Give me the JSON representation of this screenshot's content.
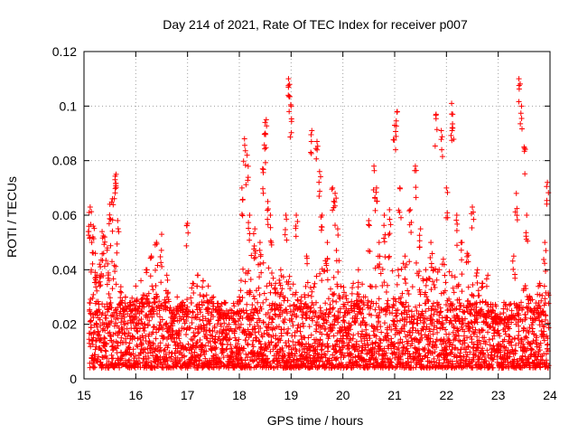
{
  "chart_data": {
    "type": "scatter",
    "title": "Day 214 of 2021, Rate Of TEC Index for receiver p007",
    "xlabel": "GPS time / hours",
    "ylabel": "ROTI / TECUs",
    "xlim": [
      15,
      24
    ],
    "ylim": [
      0,
      0.12
    ],
    "x_ticks": [
      15,
      16,
      17,
      18,
      19,
      20,
      21,
      22,
      23,
      24
    ],
    "x_tick_labels": [
      "15",
      "16",
      "17",
      "18",
      "19",
      "20",
      "21",
      "22",
      "23",
      "24"
    ],
    "y_ticks": [
      0,
      0.02,
      0.04,
      0.06,
      0.08,
      0.1,
      0.12
    ],
    "y_tick_labels": [
      "0",
      "0.02",
      "0.04",
      "0.06",
      "0.08",
      "0.1",
      "0.12"
    ],
    "grid": true,
    "marker": "plus",
    "color": "#ff0000",
    "series": [
      {
        "points": [
          [
            15.1,
            0.061
          ],
          [
            15.12,
            0.063
          ],
          [
            15.15,
            0.05
          ],
          [
            15.18,
            0.056
          ],
          [
            15.22,
            0.046
          ],
          [
            15.25,
            0.038
          ],
          [
            15.3,
            0.042
          ],
          [
            15.35,
            0.054
          ],
          [
            15.4,
            0.052
          ],
          [
            15.45,
            0.048
          ],
          [
            15.5,
            0.064
          ],
          [
            15.55,
            0.066
          ],
          [
            15.6,
            0.073
          ],
          [
            15.62,
            0.075
          ],
          [
            15.65,
            0.058
          ],
          [
            15.7,
            0.032
          ],
          [
            15.8,
            0.03
          ],
          [
            15.9,
            0.028
          ],
          [
            16.0,
            0.034
          ],
          [
            16.1,
            0.036
          ],
          [
            16.2,
            0.04
          ],
          [
            16.3,
            0.045
          ],
          [
            16.4,
            0.05
          ],
          [
            16.5,
            0.053
          ],
          [
            16.6,
            0.038
          ],
          [
            16.7,
            0.024
          ],
          [
            16.8,
            0.03
          ],
          [
            16.9,
            0.028
          ],
          [
            17.0,
            0.057
          ],
          [
            17.1,
            0.035
          ],
          [
            17.2,
            0.038
          ],
          [
            17.3,
            0.036
          ],
          [
            17.4,
            0.034
          ],
          [
            17.5,
            0.03
          ],
          [
            17.6,
            0.025
          ],
          [
            17.7,
            0.022
          ],
          [
            17.8,
            0.02
          ],
          [
            17.9,
            0.024
          ],
          [
            18.0,
            0.03
          ],
          [
            18.05,
            0.07
          ],
          [
            18.1,
            0.088
          ],
          [
            18.15,
            0.082
          ],
          [
            18.2,
            0.06
          ],
          [
            18.3,
            0.055
          ],
          [
            18.4,
            0.05
          ],
          [
            18.45,
            0.077
          ],
          [
            18.5,
            0.09
          ],
          [
            18.52,
            0.095
          ],
          [
            18.55,
            0.065
          ],
          [
            18.6,
            0.06
          ],
          [
            18.7,
            0.035
          ],
          [
            18.8,
            0.04
          ],
          [
            18.9,
            0.06
          ],
          [
            18.95,
            0.11
          ],
          [
            18.97,
            0.108
          ],
          [
            19.0,
            0.1
          ],
          [
            19.1,
            0.06
          ],
          [
            19.2,
            0.03
          ],
          [
            19.3,
            0.045
          ],
          [
            19.4,
            0.091
          ],
          [
            19.5,
            0.087
          ],
          [
            19.55,
            0.076
          ],
          [
            19.6,
            0.06
          ],
          [
            19.7,
            0.05
          ],
          [
            19.8,
            0.07
          ],
          [
            19.85,
            0.068
          ],
          [
            19.9,
            0.055
          ],
          [
            20.0,
            0.03
          ],
          [
            20.1,
            0.025
          ],
          [
            20.2,
            0.035
          ],
          [
            20.3,
            0.04
          ],
          [
            20.4,
            0.03
          ],
          [
            20.5,
            0.058
          ],
          [
            20.6,
            0.078
          ],
          [
            20.65,
            0.07
          ],
          [
            20.7,
            0.05
          ],
          [
            20.8,
            0.06
          ],
          [
            20.9,
            0.062
          ],
          [
            21.0,
            0.093
          ],
          [
            21.05,
            0.098
          ],
          [
            21.1,
            0.07
          ],
          [
            21.2,
            0.045
          ],
          [
            21.3,
            0.062
          ],
          [
            21.4,
            0.078
          ],
          [
            21.5,
            0.055
          ],
          [
            21.6,
            0.04
          ],
          [
            21.7,
            0.05
          ],
          [
            21.8,
            0.097
          ],
          [
            21.9,
            0.091
          ],
          [
            22.0,
            0.07
          ],
          [
            22.1,
            0.101
          ],
          [
            22.12,
            0.097
          ],
          [
            22.2,
            0.06
          ],
          [
            22.3,
            0.05
          ],
          [
            22.4,
            0.046
          ],
          [
            22.5,
            0.063
          ],
          [
            22.6,
            0.04
          ],
          [
            22.7,
            0.035
          ],
          [
            22.8,
            0.038
          ],
          [
            22.9,
            0.025
          ],
          [
            23.0,
            0.02
          ],
          [
            23.1,
            0.018
          ],
          [
            23.2,
            0.02
          ],
          [
            23.3,
            0.045
          ],
          [
            23.35,
            0.068
          ],
          [
            23.4,
            0.11
          ],
          [
            23.45,
            0.1
          ],
          [
            23.5,
            0.085
          ],
          [
            23.55,
            0.06
          ],
          [
            23.6,
            0.03
          ],
          [
            23.7,
            0.025
          ],
          [
            23.8,
            0.035
          ],
          [
            23.9,
            0.05
          ],
          [
            23.95,
            0.072
          ]
        ],
        "dense_band": {
          "y_low": 0.004,
          "y_mid": 0.012,
          "y_high": 0.028
        },
        "envelope": [
          [
            15.1,
            0.03
          ],
          [
            15.3,
            0.045
          ],
          [
            15.5,
            0.05
          ],
          [
            15.7,
            0.035
          ],
          [
            15.9,
            0.03
          ],
          [
            16.1,
            0.03
          ],
          [
            16.3,
            0.035
          ],
          [
            16.5,
            0.04
          ],
          [
            16.7,
            0.025
          ],
          [
            16.9,
            0.028
          ],
          [
            17.1,
            0.034
          ],
          [
            17.3,
            0.036
          ],
          [
            17.5,
            0.03
          ],
          [
            17.7,
            0.024
          ],
          [
            17.9,
            0.022
          ],
          [
            18.1,
            0.045
          ],
          [
            18.3,
            0.05
          ],
          [
            18.5,
            0.05
          ],
          [
            18.7,
            0.035
          ],
          [
            18.9,
            0.04
          ],
          [
            19.1,
            0.035
          ],
          [
            19.3,
            0.03
          ],
          [
            19.5,
            0.04
          ],
          [
            19.7,
            0.05
          ],
          [
            19.9,
            0.045
          ],
          [
            20.1,
            0.028
          ],
          [
            20.3,
            0.032
          ],
          [
            20.5,
            0.04
          ],
          [
            20.7,
            0.045
          ],
          [
            20.9,
            0.045
          ],
          [
            21.1,
            0.045
          ],
          [
            21.3,
            0.045
          ],
          [
            21.5,
            0.042
          ],
          [
            21.7,
            0.04
          ],
          [
            21.9,
            0.045
          ],
          [
            22.1,
            0.04
          ],
          [
            22.3,
            0.035
          ],
          [
            22.5,
            0.035
          ],
          [
            22.7,
            0.03
          ],
          [
            22.9,
            0.025
          ],
          [
            23.1,
            0.02
          ],
          [
            23.3,
            0.025
          ],
          [
            23.5,
            0.035
          ],
          [
            23.7,
            0.03
          ],
          [
            23.9,
            0.035
          ]
        ]
      }
    ]
  }
}
